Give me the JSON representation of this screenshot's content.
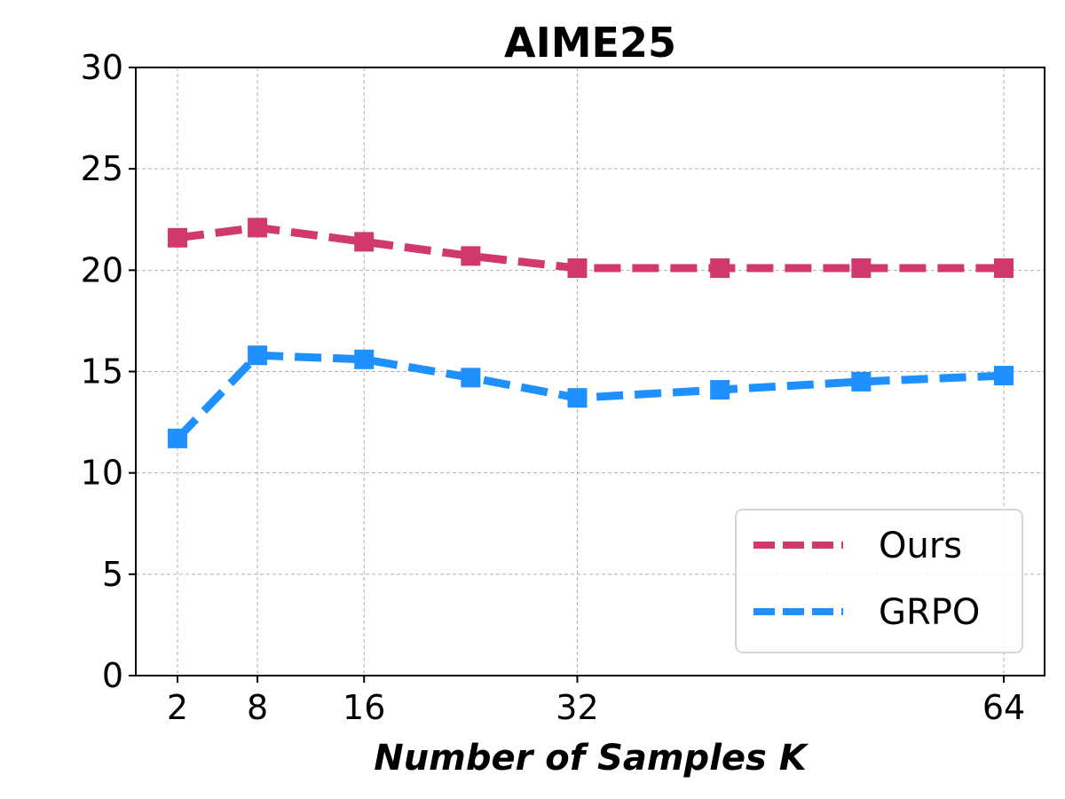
{
  "chart_data": {
    "type": "line",
    "title": "AIME25",
    "xlabel": "Number of Samples K",
    "ylabel": "",
    "x": [
      2,
      8,
      16,
      24,
      32,
      42.7,
      53.3,
      64
    ],
    "xticks": [
      2,
      8,
      16,
      32,
      64
    ],
    "yticks": [
      0,
      5,
      10,
      15,
      20,
      25,
      30
    ],
    "xlim": [
      -1,
      67.2
    ],
    "ylim": [
      0,
      30
    ],
    "grid": true,
    "legend_position": "lower right",
    "series": [
      {
        "name": "Ours",
        "color": "#d1386c",
        "linestyle": "dashed",
        "marker": "square",
        "values": [
          21.6,
          22.1,
          21.4,
          20.7,
          20.1,
          20.1,
          20.1,
          20.1
        ]
      },
      {
        "name": "GRPO",
        "color": "#1e90ff",
        "linestyle": "dashed",
        "marker": "square",
        "values": [
          11.7,
          15.8,
          15.6,
          14.7,
          13.7,
          14.1,
          14.5,
          14.8
        ]
      }
    ]
  },
  "labels": {
    "title": "AIME25",
    "xlabel": "Number of Samples K",
    "legend": [
      "Ours",
      "GRPO"
    ]
  }
}
